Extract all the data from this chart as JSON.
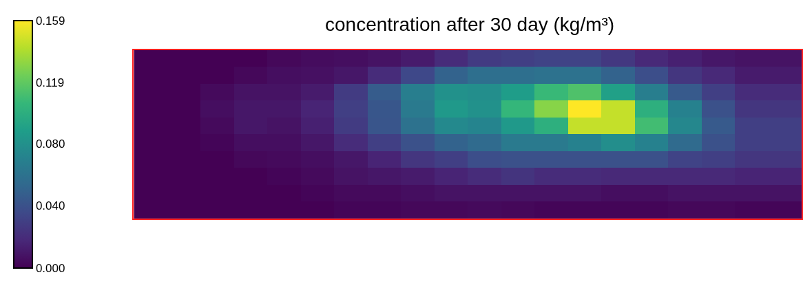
{
  "chart_data": {
    "type": "heatmap",
    "title": "concentration after 30 day (kg/m³)",
    "categories": [
      null,
      null,
      null,
      null,
      null,
      null,
      null,
      null,
      null,
      null,
      null,
      null,
      null,
      null,
      null,
      null,
      null,
      null,
      null,
      null
    ],
    "y_categories": [
      null,
      null,
      null,
      null,
      null,
      null,
      null,
      null,
      null,
      null
    ],
    "cells": [
      [
        0,
        0,
        0,
        0,
        0.003,
        0.005,
        0.006,
        0.008,
        0.012,
        0.02,
        0.028,
        0.03,
        0.032,
        0.032,
        0.026,
        0.018,
        0.014,
        0.01,
        0.008,
        0.008
      ],
      [
        0,
        0,
        0,
        0.003,
        0.006,
        0.007,
        0.01,
        0.02,
        0.035,
        0.05,
        0.058,
        0.058,
        0.06,
        0.06,
        0.05,
        0.038,
        0.025,
        0.018,
        0.012,
        0.012
      ],
      [
        0,
        0,
        0.004,
        0.008,
        0.008,
        0.012,
        0.028,
        0.046,
        0.068,
        0.08,
        0.078,
        0.088,
        0.107,
        0.114,
        0.09,
        0.068,
        0.045,
        0.03,
        0.02,
        0.02
      ],
      [
        0,
        0,
        0.006,
        0.01,
        0.01,
        0.016,
        0.03,
        0.043,
        0.065,
        0.085,
        0.08,
        0.105,
        0.13,
        0.159,
        0.145,
        0.1,
        0.07,
        0.04,
        0.025,
        0.025
      ],
      [
        0,
        0,
        0.004,
        0.01,
        0.008,
        0.014,
        0.028,
        0.042,
        0.06,
        0.075,
        0.072,
        0.085,
        0.1,
        0.145,
        0.145,
        0.11,
        0.074,
        0.045,
        0.03,
        0.03
      ],
      [
        0,
        0,
        0.002,
        0.006,
        0.006,
        0.01,
        0.02,
        0.03,
        0.04,
        0.05,
        0.055,
        0.065,
        0.065,
        0.07,
        0.078,
        0.07,
        0.055,
        0.04,
        0.03,
        0.03
      ],
      [
        0,
        0,
        0,
        0.003,
        0.004,
        0.006,
        0.01,
        0.016,
        0.025,
        0.03,
        0.038,
        0.04,
        0.04,
        0.04,
        0.04,
        0.04,
        0.032,
        0.03,
        0.025,
        0.025
      ],
      [
        0,
        0,
        0,
        0,
        0.002,
        0.004,
        0.008,
        0.01,
        0.012,
        0.016,
        0.02,
        0.024,
        0.02,
        0.02,
        0.018,
        0.018,
        0.018,
        0.018,
        0.016,
        0.016
      ],
      [
        0,
        0,
        0,
        0,
        0,
        0.002,
        0.004,
        0.004,
        0.006,
        0.008,
        0.008,
        0.008,
        0.008,
        0.008,
        0.006,
        0.006,
        0.008,
        0.008,
        0.008,
        0.008
      ],
      [
        0,
        0,
        0,
        0,
        0,
        0,
        0.002,
        0.002,
        0.003,
        0.003,
        0.004,
        0.003,
        0.002,
        0.002,
        0.002,
        0.002,
        0.003,
        0.003,
        0.002,
        0.002
      ]
    ],
    "clim": [
      0,
      0.159
    ],
    "cticks": [
      {
        "value": 0,
        "label": "0.000"
      },
      {
        "value": 0.04,
        "label": "0.040"
      },
      {
        "value": 0.08,
        "label": "0.080"
      },
      {
        "value": 0.119,
        "label": "0.119"
      },
      {
        "value": 0.159,
        "label": "0.159"
      }
    ]
  }
}
